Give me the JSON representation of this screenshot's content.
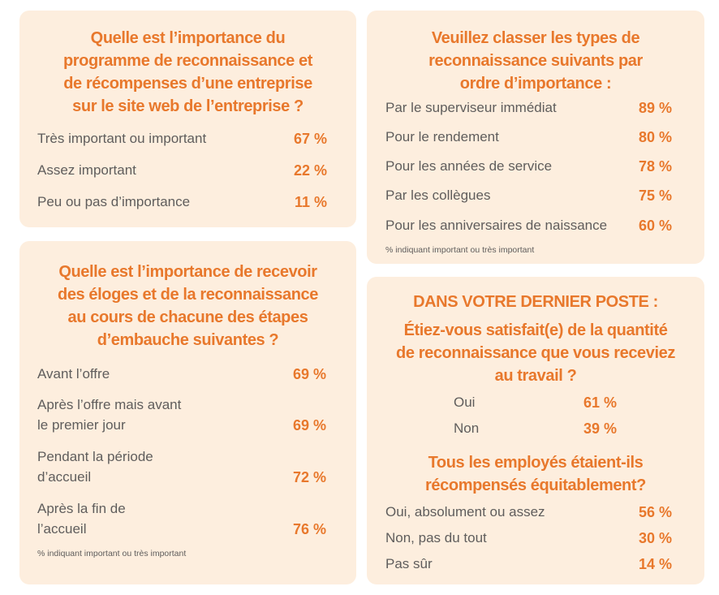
{
  "card1": {
    "lines": [
      "Quelle est l’importance du",
      "programme de reconnaissance et",
      "de récompenses d’une entreprise",
      "sur le site web de l’entreprise ?"
    ],
    "rows": [
      {
        "label": "Très important ou important",
        "value": "67 %"
      },
      {
        "label": "Assez important",
        "value": "22 %"
      },
      {
        "label": "Peu ou pas d’importance",
        "value": "11 %"
      }
    ]
  },
  "card2": {
    "lines": [
      "Veuillez classer les types de",
      "reconnaissance suivants par",
      "ordre d’importance :"
    ],
    "rows": [
      {
        "label": "Par le superviseur immédiat",
        "value": "89 %"
      },
      {
        "label": "Pour le rendement",
        "value": "80 %"
      },
      {
        "label": "Pour les années de service",
        "value": "78 %"
      },
      {
        "label": "Par les collègues",
        "value": "75 %"
      },
      {
        "label": "Pour les anniversaires de naissance",
        "value": "60 %"
      }
    ],
    "note": "% indiquant important ou très important"
  },
  "card3": {
    "lines": [
      "Quelle est l’importance de recevoir",
      "des éloges et de la reconnaissance",
      "au cours de chacune des étapes",
      "d’embauche suivantes ?"
    ],
    "rows": [
      {
        "label1": "Avant l’offre",
        "label2": "",
        "value": "69 %"
      },
      {
        "label1": "Après l’offre mais avant",
        "label2": "le premier jour",
        "value": "69 %"
      },
      {
        "label1": "Pendant la période",
        "label2": "d’accueil",
        "value": "72 %"
      },
      {
        "label1": "Après la fin de",
        "label2": "l’accueil",
        "value": "76 %"
      }
    ],
    "note": "% indiquant important ou très important"
  },
  "card4": {
    "heading": "DANS VOTRE DERNIER POSTE :",
    "q1_lines": [
      "Étiez-vous satisfait(e) de la quantité",
      "de reconnaissance que vous receviez",
      "au travail ?"
    ],
    "q1_rows": [
      {
        "label": "Oui",
        "value": "61 %"
      },
      {
        "label": "Non",
        "value": "39 %"
      }
    ],
    "q2_lines": [
      "Tous les employés étaient-ils",
      "récompensés équitablement?"
    ],
    "q2_rows": [
      {
        "label": "Oui, absolument ou assez",
        "value": "56 %"
      },
      {
        "label": "Non, pas du tout",
        "value": "30 %"
      },
      {
        "label": "Pas sûr",
        "value": "14 %"
      }
    ]
  }
}
